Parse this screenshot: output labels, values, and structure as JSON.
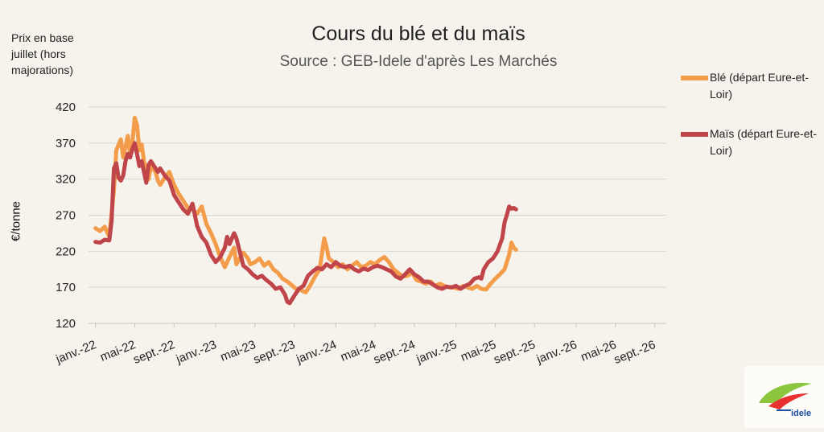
{
  "title": "Cours du blé et du maïs",
  "subtitle": "Source : GEB-Idele d'après Les Marchés",
  "note": "Prix en base juillet (hors majorations)",
  "logo": {
    "text": "INSTITUT DE L'ÉLEVAGE idele"
  },
  "chart_data": {
    "type": "line",
    "ylabel": "€/tonne",
    "ylim": [
      120,
      420
    ],
    "yticks": [
      120,
      170,
      220,
      270,
      320,
      370,
      420
    ],
    "grid": true,
    "legend_position": "right",
    "xtick_labels": [
      "janv.-22",
      "mai-22",
      "sept.-22",
      "janv.-23",
      "mai-23",
      "sept.-23",
      "janv.-24",
      "mai-24",
      "sept.-24",
      "janv.-25",
      "mai-25",
      "sept.-25",
      "janv.-26",
      "mai-26",
      "sept.-26"
    ],
    "xtick_weeks": [
      0,
      17,
      34,
      52,
      69,
      86,
      104,
      121,
      138,
      156,
      173,
      190,
      208,
      225,
      242
    ],
    "series": [
      {
        "name": "Blé (départ Eure-et-Loir)",
        "color": "#f39c4a",
        "points": [
          [
            0,
            252
          ],
          [
            2,
            248
          ],
          [
            4,
            254
          ],
          [
            6,
            240
          ],
          [
            8,
            305
          ],
          [
            9,
            360
          ],
          [
            11,
            375
          ],
          [
            12,
            350
          ],
          [
            13,
            365
          ],
          [
            14,
            380
          ],
          [
            15,
            355
          ],
          [
            16,
            372
          ],
          [
            17,
            405
          ],
          [
            18,
            395
          ],
          [
            19,
            360
          ],
          [
            20,
            368
          ],
          [
            21,
            345
          ],
          [
            22,
            330
          ],
          [
            23,
            320
          ],
          [
            24,
            338
          ],
          [
            26,
            330
          ],
          [
            27,
            318
          ],
          [
            28,
            312
          ],
          [
            30,
            322
          ],
          [
            32,
            330
          ],
          [
            34,
            312
          ],
          [
            36,
            300
          ],
          [
            38,
            290
          ],
          [
            40,
            280
          ],
          [
            42,
            278
          ],
          [
            44,
            272
          ],
          [
            46,
            282
          ],
          [
            48,
            258
          ],
          [
            50,
            245
          ],
          [
            52,
            230
          ],
          [
            54,
            212
          ],
          [
            56,
            198
          ],
          [
            58,
            212
          ],
          [
            60,
            225
          ],
          [
            61,
            202
          ],
          [
            62,
            208
          ],
          [
            64,
            218
          ],
          [
            66,
            210
          ],
          [
            67,
            202
          ],
          [
            69,
            205
          ],
          [
            71,
            210
          ],
          [
            73,
            200
          ],
          [
            75,
            205
          ],
          [
            77,
            195
          ],
          [
            79,
            190
          ],
          [
            81,
            182
          ],
          [
            83,
            178
          ],
          [
            85,
            173
          ],
          [
            86,
            170
          ],
          [
            87,
            168
          ],
          [
            89,
            166
          ],
          [
            91,
            163
          ],
          [
            93,
            173
          ],
          [
            95,
            185
          ],
          [
            97,
            195
          ],
          [
            99,
            238
          ],
          [
            100,
            225
          ],
          [
            101,
            210
          ],
          [
            103,
            205
          ],
          [
            105,
            198
          ],
          [
            107,
            202
          ],
          [
            109,
            195
          ],
          [
            111,
            200
          ],
          [
            113,
            205
          ],
          [
            115,
            198
          ],
          [
            117,
            200
          ],
          [
            119,
            205
          ],
          [
            121,
            202
          ],
          [
            123,
            208
          ],
          [
            125,
            212
          ],
          [
            127,
            205
          ],
          [
            129,
            195
          ],
          [
            131,
            190
          ],
          [
            133,
            185
          ],
          [
            135,
            186
          ],
          [
            137,
            190
          ],
          [
            139,
            180
          ],
          [
            141,
            178
          ],
          [
            143,
            175
          ],
          [
            145,
            178
          ],
          [
            147,
            172
          ],
          [
            149,
            175
          ],
          [
            151,
            172
          ],
          [
            153,
            170
          ],
          [
            155,
            170
          ],
          [
            157,
            168
          ],
          [
            159,
            172
          ],
          [
            161,
            170
          ],
          [
            163,
            168
          ],
          [
            165,
            172
          ],
          [
            167,
            168
          ],
          [
            169,
            167
          ],
          [
            171,
            175
          ],
          [
            173,
            182
          ],
          [
            175,
            188
          ],
          [
            177,
            195
          ],
          [
            179,
            215
          ],
          [
            180,
            232
          ],
          [
            181,
            225
          ],
          [
            182,
            222
          ]
        ]
      },
      {
        "name": "Maïs (départ Eure-et-Loir)",
        "color": "#c0454a",
        "points": [
          [
            0,
            233
          ],
          [
            2,
            232
          ],
          [
            4,
            236
          ],
          [
            6,
            235
          ],
          [
            7,
            262
          ],
          [
            8,
            335
          ],
          [
            9,
            342
          ],
          [
            10,
            322
          ],
          [
            11,
            318
          ],
          [
            12,
            325
          ],
          [
            13,
            345
          ],
          [
            14,
            355
          ],
          [
            15,
            350
          ],
          [
            16,
            362
          ],
          [
            17,
            370
          ],
          [
            18,
            355
          ],
          [
            19,
            338
          ],
          [
            20,
            345
          ],
          [
            21,
            330
          ],
          [
            22,
            315
          ],
          [
            23,
            340
          ],
          [
            24,
            345
          ],
          [
            26,
            335
          ],
          [
            27,
            330
          ],
          [
            28,
            335
          ],
          [
            30,
            325
          ],
          [
            32,
            318
          ],
          [
            34,
            298
          ],
          [
            36,
            288
          ],
          [
            38,
            278
          ],
          [
            40,
            272
          ],
          [
            42,
            286
          ],
          [
            44,
            255
          ],
          [
            46,
            240
          ],
          [
            48,
            232
          ],
          [
            50,
            215
          ],
          [
            52,
            205
          ],
          [
            54,
            212
          ],
          [
            56,
            225
          ],
          [
            57,
            240
          ],
          [
            58,
            230
          ],
          [
            60,
            245
          ],
          [
            61,
            238
          ],
          [
            62,
            225
          ],
          [
            64,
            200
          ],
          [
            66,
            195
          ],
          [
            68,
            188
          ],
          [
            70,
            183
          ],
          [
            72,
            186
          ],
          [
            74,
            180
          ],
          [
            76,
            175
          ],
          [
            78,
            168
          ],
          [
            80,
            170
          ],
          [
            82,
            160
          ],
          [
            83,
            150
          ],
          [
            84,
            148
          ],
          [
            86,
            158
          ],
          [
            88,
            168
          ],
          [
            90,
            172
          ],
          [
            92,
            186
          ],
          [
            94,
            192
          ],
          [
            96,
            197
          ],
          [
            98,
            195
          ],
          [
            100,
            202
          ],
          [
            102,
            198
          ],
          [
            104,
            205
          ],
          [
            106,
            200
          ],
          [
            108,
            198
          ],
          [
            110,
            200
          ],
          [
            112,
            195
          ],
          [
            114,
            192
          ],
          [
            116,
            196
          ],
          [
            118,
            194
          ],
          [
            120,
            198
          ],
          [
            122,
            200
          ],
          [
            124,
            198
          ],
          [
            126,
            195
          ],
          [
            128,
            192
          ],
          [
            130,
            185
          ],
          [
            132,
            182
          ],
          [
            134,
            188
          ],
          [
            136,
            195
          ],
          [
            138,
            188
          ],
          [
            140,
            184
          ],
          [
            142,
            178
          ],
          [
            144,
            178
          ],
          [
            146,
            174
          ],
          [
            148,
            170
          ],
          [
            150,
            168
          ],
          [
            152,
            171
          ],
          [
            154,
            170
          ],
          [
            156,
            172
          ],
          [
            158,
            168
          ],
          [
            160,
            172
          ],
          [
            162,
            175
          ],
          [
            164,
            182
          ],
          [
            166,
            184
          ],
          [
            167,
            182
          ],
          [
            168,
            195
          ],
          [
            170,
            205
          ],
          [
            172,
            210
          ],
          [
            174,
            220
          ],
          [
            176,
            238
          ],
          [
            177,
            260
          ],
          [
            178,
            270
          ],
          [
            179,
            282
          ],
          [
            180,
            279
          ],
          [
            181,
            280
          ],
          [
            182,
            278
          ]
        ]
      }
    ]
  }
}
